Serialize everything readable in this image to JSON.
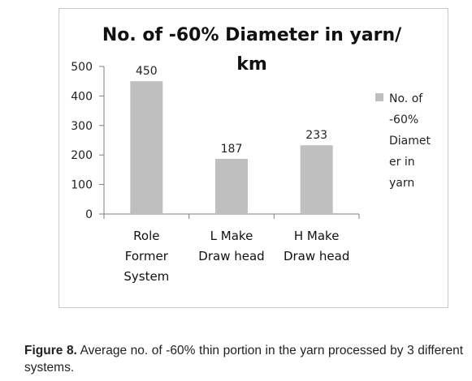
{
  "chart_data": {
    "type": "bar",
    "title_lines": [
      "No. of -60% Diameter in yarn/",
      "km"
    ],
    "categories": [
      [
        "Role",
        "Former",
        "System"
      ],
      [
        "L Make",
        "Draw head"
      ],
      [
        "H Make",
        "Draw head"
      ]
    ],
    "series": [
      {
        "name_lines": [
          "No. of",
          "-60%",
          "Diamet",
          "er in",
          "yarn"
        ],
        "values": [
          450,
          187,
          233
        ],
        "color": "#bfbfbf"
      }
    ],
    "data_labels": [
      "450",
      "187",
      "233"
    ],
    "yticks": [
      "0",
      "100",
      "200",
      "300",
      "400",
      "500"
    ],
    "ylim": [
      0,
      500
    ],
    "legend_position": "right",
    "grid": false
  },
  "caption": {
    "label": "Figure 8.",
    "text": "Average no. of -60% thin portion in the yarn processed by 3 different systems."
  }
}
